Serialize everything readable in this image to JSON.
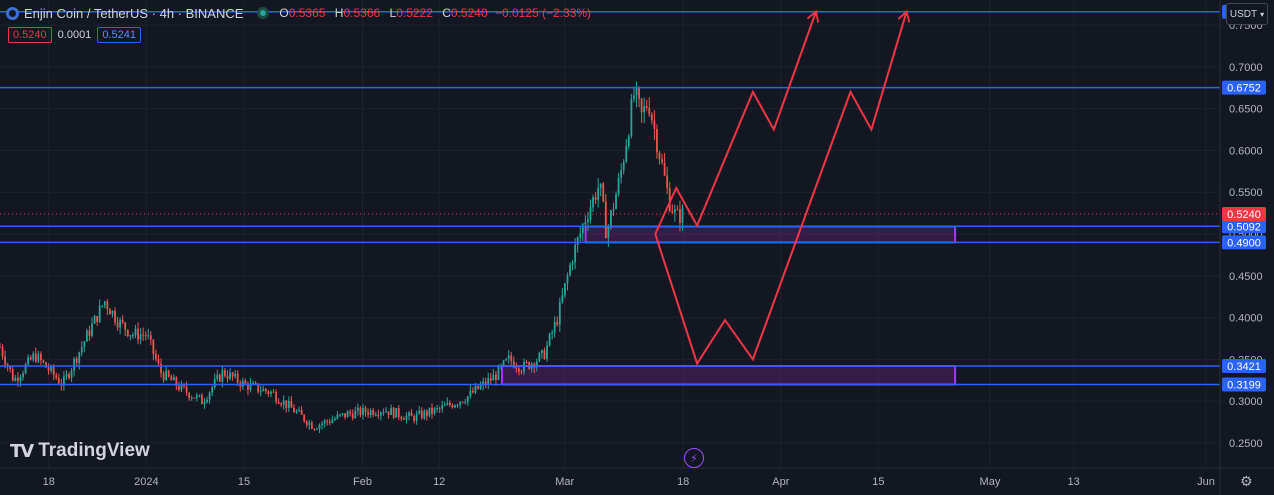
{
  "header": {
    "symbol_title": "Enjin Coin / TetherUS · 4h · BINANCE",
    "open_label": "O",
    "open": "0.5365",
    "high_label": "H",
    "high": "0.5366",
    "low_label": "L",
    "low": "0.5222",
    "close_label": "C",
    "close": "0.5240",
    "change": "−0.0125 (−2.33%)",
    "bid": "0.5240",
    "spread": "0.0001",
    "ask": "0.5241"
  },
  "currency_button": {
    "label": "USDT"
  },
  "logo": {
    "text": "TradingView"
  },
  "colors": {
    "background": "#131722",
    "level_line": "#2962ff",
    "zone": "#9c27b0",
    "projection": "#f23645",
    "up_candle": "#26a69a",
    "down_candle": "#ef5350"
  },
  "chart_data": {
    "type": "candlestick",
    "title": "",
    "xlabel": "",
    "ylabel": "",
    "ylim": [
      0.22,
      0.78
    ],
    "x_range": [
      "2023-12-11",
      "2024-06-03"
    ],
    "y_ticks": [
      "0.2500",
      "0.3000",
      "0.3500",
      "0.4000",
      "0.4500",
      "0.5000",
      "0.5500",
      "0.6000",
      "0.6500",
      "0.7000",
      "0.7500"
    ],
    "x_ticks": [
      {
        "label": "18",
        "date": "2023-12-18"
      },
      {
        "label": "2024",
        "date": "2024-01-01"
      },
      {
        "label": "15",
        "date": "2024-01-15"
      },
      {
        "label": "Feb",
        "date": "2024-02-01"
      },
      {
        "label": "12",
        "date": "2024-02-12"
      },
      {
        "label": "Mar",
        "date": "2024-03-01"
      },
      {
        "label": "18",
        "date": "2024-03-18"
      },
      {
        "label": "Apr",
        "date": "2024-04-01"
      },
      {
        "label": "15",
        "date": "2024-04-15"
      },
      {
        "label": "May",
        "date": "2024-05-01"
      },
      {
        "label": "13",
        "date": "2024-05-13"
      },
      {
        "label": "Jun",
        "date": "2024-06-01"
      }
    ],
    "last_price": {
      "value": 0.524,
      "label": "0.5240"
    },
    "horizontal_levels": [
      {
        "value": 0.7659,
        "label": "0.7659"
      },
      {
        "value": 0.6752,
        "label": "0.6752"
      },
      {
        "value": 0.5092,
        "label": "0.5092"
      },
      {
        "value": 0.49,
        "label": "0.4900"
      },
      {
        "value": 0.3421,
        "label": "0.3421"
      },
      {
        "value": 0.3199,
        "label": "0.3199"
      }
    ],
    "zones": [
      {
        "from": "2024-03-04",
        "to": "2024-04-26",
        "low": 0.49,
        "high": 0.509
      },
      {
        "from": "2024-02-21",
        "to": "2024-04-26",
        "low": 0.32,
        "high": 0.342
      }
    ],
    "projections": [
      {
        "points": [
          [
            "2024-03-14",
            0.5
          ],
          [
            "2024-03-17",
            0.555
          ],
          [
            "2024-03-20",
            0.51
          ],
          [
            "2024-03-28",
            0.67
          ],
          [
            "2024-03-31",
            0.625
          ],
          [
            "2024-04-06",
            0.765
          ]
        ]
      },
      {
        "points": [
          [
            "2024-03-14",
            0.5
          ],
          [
            "2024-03-20",
            0.345
          ],
          [
            "2024-03-24",
            0.397
          ],
          [
            "2024-03-28",
            0.35
          ],
          [
            "2024-04-11",
            0.67
          ],
          [
            "2024-04-14",
            0.625
          ],
          [
            "2024-04-19",
            0.765
          ]
        ]
      }
    ],
    "price_path": [
      [
        "2023-12-11",
        0.365
      ],
      [
        "2023-12-13",
        0.325
      ],
      [
        "2023-12-16",
        0.355
      ],
      [
        "2023-12-20",
        0.32
      ],
      [
        "2023-12-23",
        0.37
      ],
      [
        "2023-12-26",
        0.42
      ],
      [
        "2023-12-28",
        0.395
      ],
      [
        "2023-12-30",
        0.38
      ],
      [
        "2024-01-01",
        0.38
      ],
      [
        "2024-01-03",
        0.335
      ],
      [
        "2024-01-06",
        0.315
      ],
      [
        "2024-01-09",
        0.3
      ],
      [
        "2024-01-12",
        0.335
      ],
      [
        "2024-01-15",
        0.32
      ],
      [
        "2024-01-19",
        0.31
      ],
      [
        "2024-01-22",
        0.29
      ],
      [
        "2024-01-25",
        0.27
      ],
      [
        "2024-01-30",
        0.285
      ],
      [
        "2024-02-04",
        0.29
      ],
      [
        "2024-02-08",
        0.28
      ],
      [
        "2024-02-12",
        0.29
      ],
      [
        "2024-02-16",
        0.305
      ],
      [
        "2024-02-20",
        0.33
      ],
      [
        "2024-02-22",
        0.35
      ],
      [
        "2024-02-24",
        0.34
      ],
      [
        "2024-02-27",
        0.355
      ],
      [
        "2024-02-29",
        0.4
      ],
      [
        "2024-03-02",
        0.47
      ],
      [
        "2024-03-04",
        0.52
      ],
      [
        "2024-03-06",
        0.56
      ],
      [
        "2024-03-07",
        0.5
      ],
      [
        "2024-03-09",
        0.57
      ],
      [
        "2024-03-11",
        0.67
      ],
      [
        "2024-03-12",
        0.64
      ],
      [
        "2024-03-13",
        0.66
      ],
      [
        "2024-03-14",
        0.62
      ],
      [
        "2024-03-15",
        0.58
      ],
      [
        "2024-03-16",
        0.54
      ],
      [
        "2024-03-17",
        0.52
      ],
      [
        "2024-03-18",
        0.524
      ]
    ]
  }
}
